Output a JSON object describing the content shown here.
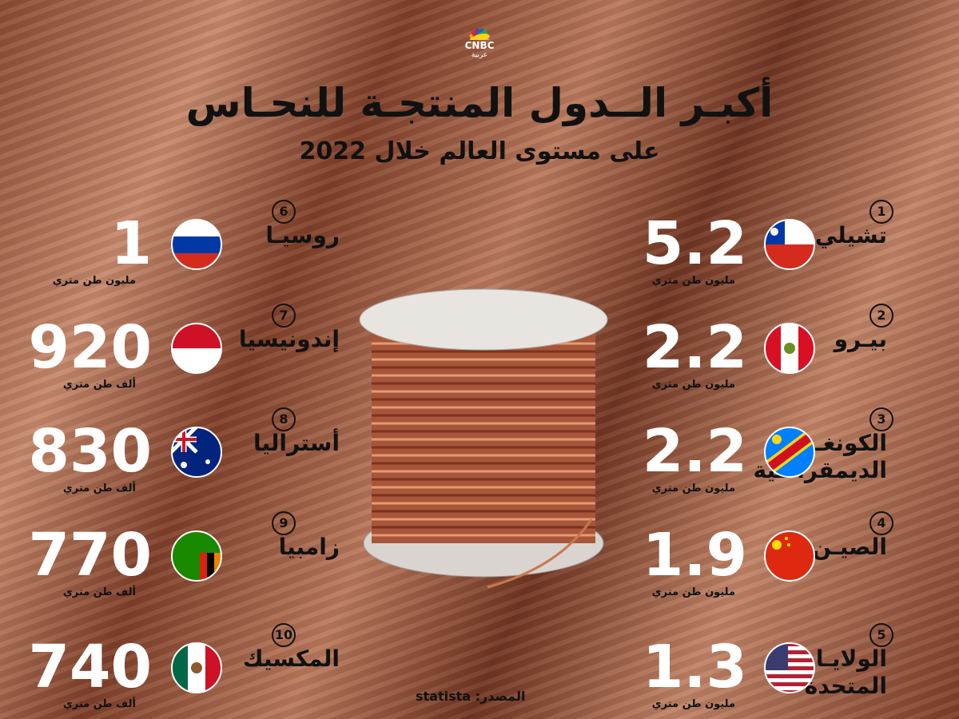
{
  "header": {
    "logo": {
      "name": "CNBC",
      "sub": "عربية"
    },
    "title": "أكبـر الــدول المنتجـة للنحـاس",
    "subtitle": "على مستوى العالم خلال 2022"
  },
  "items": [
    {
      "rank": 1,
      "country": "تشيلي",
      "value": "5.2",
      "unit": "مليون طن متري"
    },
    {
      "rank": 2,
      "country": "بيـرو",
      "value": "2.2",
      "unit": "مليون طن متري"
    },
    {
      "rank": 3,
      "country": "الكونغـو\nالديمقراطية",
      "value": "2.2",
      "unit": "مليون طن متري"
    },
    {
      "rank": 4,
      "country": "الصيـن",
      "value": "1.9",
      "unit": "مليون طن متري"
    },
    {
      "rank": 5,
      "country": "الولايـات\nالمتحدة",
      "value": "1.3",
      "unit": "مليون طن متري"
    },
    {
      "rank": 6,
      "country": "روسيـا",
      "value": "1",
      "unit": "مليون طن متري"
    },
    {
      "rank": 7,
      "country": "إندونيسيا",
      "value": "920",
      "unit": "ألف طن متري"
    },
    {
      "rank": 8,
      "country": "أستراليا",
      "value": "830",
      "unit": "ألف طن متري"
    },
    {
      "rank": 9,
      "country": "زامبيا",
      "value": "770",
      "unit": "ألف طن متري"
    },
    {
      "rank": 10,
      "country": "المكسيك",
      "value": "740",
      "unit": "ألف طن متري"
    }
  ],
  "source": {
    "label": "المصدر:",
    "name": "statista"
  }
}
